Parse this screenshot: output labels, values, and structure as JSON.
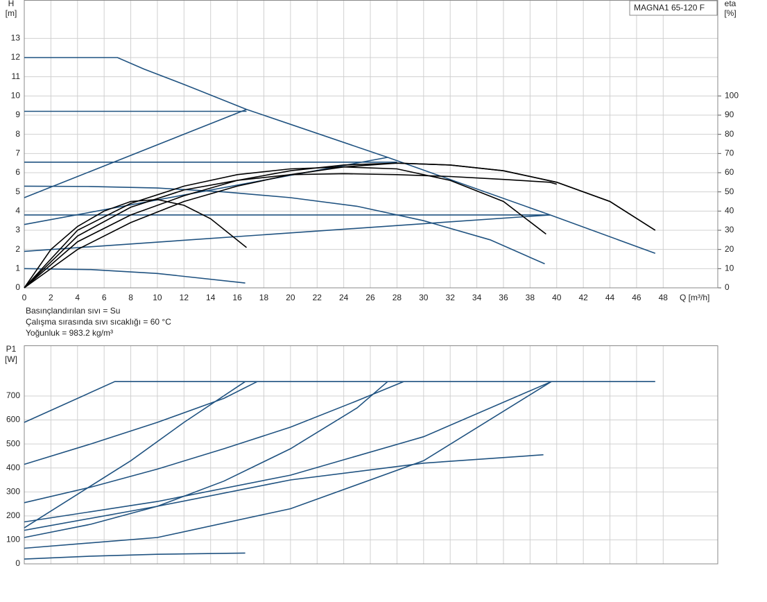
{
  "chart_data": [
    {
      "type": "line",
      "legend_box": "MAGNA1 65-120 F",
      "ylabel": "H",
      "yunit": "[m]",
      "y2label": "eta",
      "y2unit": "[%]",
      "xlabel": "Q [m³/h]",
      "xlim": [
        0,
        52.1
      ],
      "xticks": [
        0,
        2,
        4,
        6,
        8,
        10,
        12,
        14,
        16,
        18,
        20,
        22,
        24,
        26,
        28,
        30,
        32,
        34,
        36,
        38,
        40,
        42,
        44,
        46,
        48
      ],
      "ylim": [
        0,
        15
      ],
      "yticks": [
        0,
        1,
        2,
        3,
        4,
        5,
        6,
        7,
        8,
        9,
        10,
        11,
        12,
        13
      ],
      "y2lim": [
        0,
        150
      ],
      "y2ticks": [
        0,
        10,
        20,
        30,
        40,
        50,
        60,
        70,
        80,
        90,
        100
      ],
      "grid": true,
      "annotations": [
        "Basınçlandırılan sıvı = Su",
        "Çalışma sırasında sıvı sıcaklığı = 60 °C",
        "Yoğunluk = 983.2 kg/m³"
      ],
      "series": [
        {
          "color": "#1f5280",
          "x": [
            0,
            7,
            9,
            12,
            16.7,
            27.3,
            39.5,
            47.4
          ],
          "values": [
            12,
            12,
            11.4,
            10.6,
            9.3,
            6.8,
            3.8,
            1.8
          ]
        },
        {
          "color": "#1f5280",
          "x": [
            0,
            16.7
          ],
          "values": [
            9.2,
            9.2
          ]
        },
        {
          "color": "#1f5280",
          "x": [
            0,
            28
          ],
          "values": [
            6.55,
            6.55
          ]
        },
        {
          "color": "#1f5280",
          "x": [
            0,
            39.5
          ],
          "values": [
            3.8,
            3.8
          ]
        },
        {
          "color": "#1f5280",
          "x": [
            0,
            16.7
          ],
          "values": [
            4.7,
            9.3
          ]
        },
        {
          "color": "#1f5280",
          "x": [
            0,
            27.3
          ],
          "values": [
            3.3,
            6.8
          ]
        },
        {
          "color": "#1f5280",
          "x": [
            0,
            39.5
          ],
          "values": [
            1.9,
            3.8
          ]
        },
        {
          "color": "#1f5280",
          "x": [
            0,
            5,
            10,
            15,
            20,
            25,
            30,
            35,
            39.1
          ],
          "values": [
            5.3,
            5.28,
            5.2,
            5.0,
            4.7,
            4.25,
            3.5,
            2.5,
            1.25
          ]
        },
        {
          "color": "#1f5280",
          "x": [
            0,
            5,
            10,
            16.6
          ],
          "values": [
            1.0,
            0.95,
            0.75,
            0.25
          ]
        },
        {
          "color": "#000000",
          "axis": "y2",
          "x": [
            0,
            2,
            4,
            6,
            8,
            10,
            12,
            14,
            16.7
          ],
          "values": [
            0,
            20,
            32,
            40,
            45,
            46,
            43,
            36,
            21
          ]
        },
        {
          "color": "#000000",
          "axis": "y2",
          "x": [
            0,
            4,
            8,
            12,
            16,
            20,
            24,
            28,
            32,
            36,
            39.2
          ],
          "values": [
            0,
            30,
            44,
            53,
            59,
            62,
            63,
            62,
            56,
            45,
            28
          ]
        },
        {
          "color": "#000000",
          "axis": "y2",
          "x": [
            0,
            4,
            8,
            12,
            16,
            20,
            24,
            28,
            32,
            36,
            40,
            44,
            47.4
          ],
          "values": [
            0,
            24,
            38,
            48,
            56,
            61,
            64,
            65,
            64,
            61,
            55,
            45,
            30
          ]
        },
        {
          "color": "#000000",
          "axis": "y2",
          "x": [
            0,
            4,
            8,
            12,
            16,
            20,
            24,
            28,
            32,
            36,
            40,
            44,
            47.4
          ],
          "values": [
            0,
            20,
            34,
            45,
            53,
            59,
            63,
            65,
            64,
            61,
            55,
            45,
            30
          ]
        },
        {
          "color": "#000000",
          "axis": "y2",
          "x": [
            0,
            4,
            8,
            12,
            16,
            20,
            24,
            28,
            32,
            36,
            39.5,
            40
          ],
          "values": [
            0,
            27,
            42,
            51,
            56,
            59,
            59.5,
            59,
            58,
            56.5,
            55,
            54
          ]
        }
      ]
    },
    {
      "type": "line",
      "ylabel": "P1",
      "yunit": "[W]",
      "xlim": [
        0,
        52.1
      ],
      "xticks": [
        0,
        2,
        4,
        6,
        8,
        10,
        12,
        14,
        16,
        18,
        20,
        22,
        24,
        26,
        28,
        30,
        32,
        34,
        36,
        38,
        40,
        42,
        44,
        46,
        48
      ],
      "ylim": [
        0,
        911
      ],
      "yticks": [
        0,
        100,
        200,
        300,
        400,
        500,
        600,
        700
      ],
      "grid": true,
      "series": [
        {
          "color": "#1f5280",
          "x": [
            0,
            6.8,
            47.4
          ],
          "values": [
            590,
            760,
            760
          ]
        },
        {
          "color": "#1f5280",
          "x": [
            0,
            5,
            10,
            15,
            17.5
          ],
          "values": [
            415,
            500,
            590,
            690,
            760
          ]
        },
        {
          "color": "#1f5280",
          "x": [
            0,
            5,
            10,
            15,
            20,
            25,
            28.5
          ],
          "values": [
            255,
            320,
            395,
            480,
            570,
            680,
            760
          ]
        },
        {
          "color": "#1f5280",
          "x": [
            0,
            10,
            20,
            30,
            39.6
          ],
          "values": [
            175,
            260,
            370,
            530,
            760
          ]
        },
        {
          "color": "#1f5280",
          "x": [
            0,
            4,
            8,
            12,
            16.6
          ],
          "values": [
            150,
            290,
            430,
            590,
            760
          ]
        },
        {
          "color": "#1f5280",
          "x": [
            0,
            5,
            10,
            15,
            20,
            25,
            27.3
          ],
          "values": [
            110,
            165,
            240,
            345,
            480,
            650,
            760
          ]
        },
        {
          "color": "#1f5280",
          "x": [
            0,
            10,
            20,
            30,
            39.6
          ],
          "values": [
            65,
            110,
            230,
            430,
            760
          ]
        },
        {
          "color": "#1f5280",
          "x": [
            0,
            10,
            20,
            30,
            39
          ],
          "values": [
            140,
            240,
            350,
            420,
            455
          ]
        },
        {
          "color": "#1f5280",
          "x": [
            0,
            5,
            10,
            16.6
          ],
          "values": [
            20,
            32,
            40,
            45
          ]
        }
      ]
    }
  ]
}
